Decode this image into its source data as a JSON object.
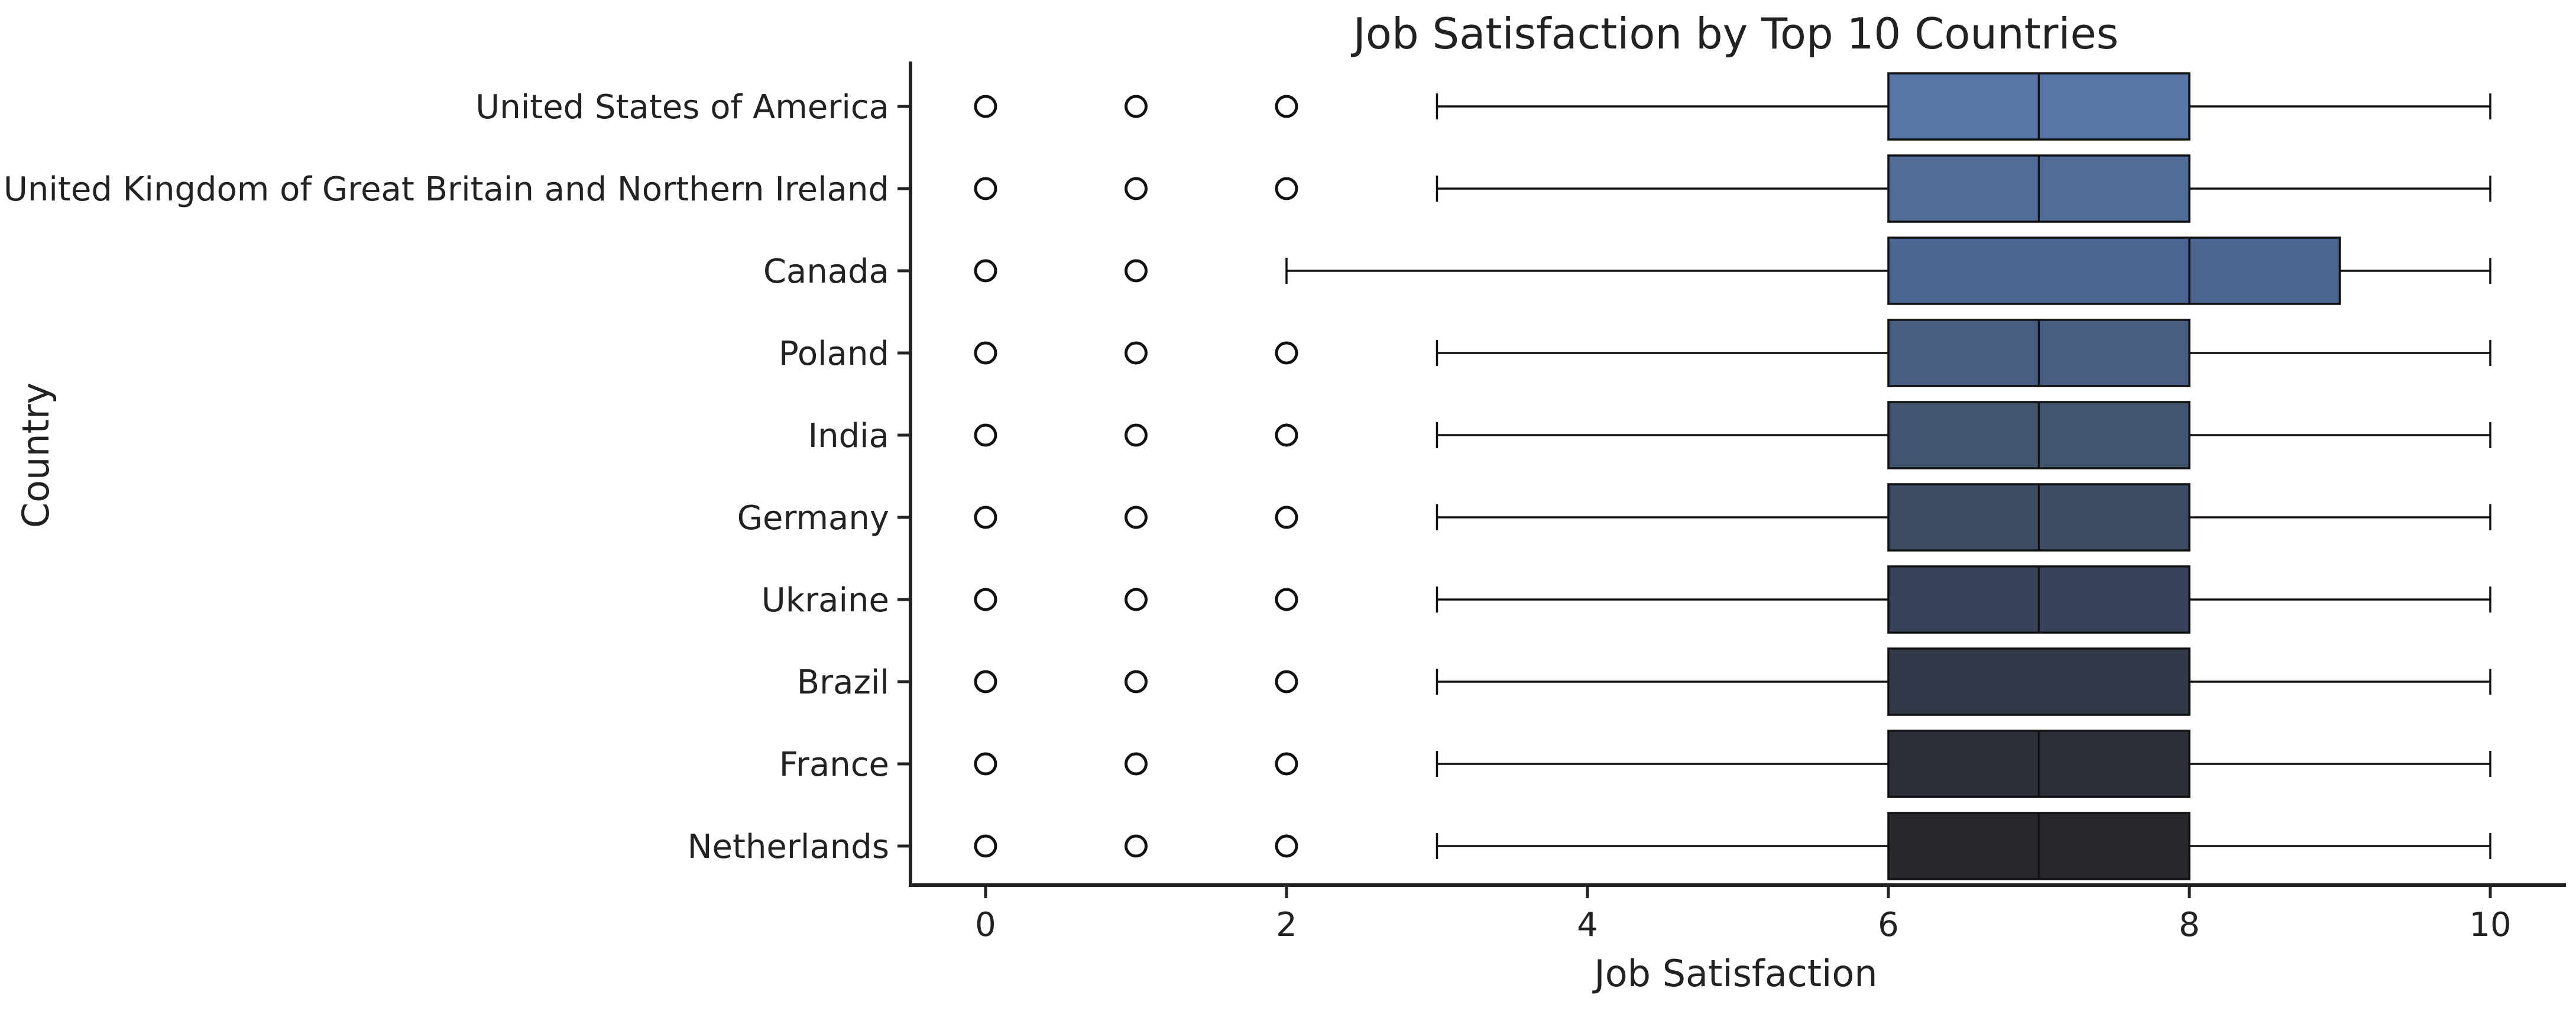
{
  "chart_data": {
    "type": "box",
    "orientation": "horizontal",
    "title": "Job Satisfaction by Top 10 Countries",
    "xlabel": "Job Satisfaction",
    "ylabel": "Country",
    "xlim": [
      -0.5,
      10.5
    ],
    "xticks": [
      0,
      2,
      4,
      6,
      8,
      10
    ],
    "grid": false,
    "categories": [
      "United States of America",
      "United Kingdom of Great Britain and Northern Ireland",
      "Canada",
      "Poland",
      "India",
      "Germany",
      "Ukraine",
      "Brazil",
      "France",
      "Netherlands"
    ],
    "boxes": [
      {
        "category": "United States of America",
        "whisker_low": 3,
        "q1": 6,
        "median": 7,
        "q3": 8,
        "whisker_high": 10,
        "outliers": [
          0,
          1,
          2
        ],
        "color": "#5875a4"
      },
      {
        "category": "United Kingdom of Great Britain and Northern Ireland",
        "whisker_low": 3,
        "q1": 6,
        "median": 7,
        "q3": 8,
        "whisker_high": 10,
        "outliers": [
          0,
          1,
          2
        ],
        "color": "#526c98"
      },
      {
        "category": "Canada",
        "whisker_low": 2,
        "q1": 6,
        "median": 8,
        "q3": 9,
        "whisker_high": 10,
        "outliers": [
          0,
          1
        ],
        "color": "#4c6590"
      },
      {
        "category": "Poland",
        "whisker_low": 3,
        "q1": 6,
        "median": 7,
        "q3": 8,
        "whisker_high": 10,
        "outliers": [
          0,
          1,
          2
        ],
        "color": "#485d82"
      },
      {
        "category": "India",
        "whisker_low": 3,
        "q1": 6,
        "median": 7,
        "q3": 8,
        "whisker_high": 10,
        "outliers": [
          0,
          1,
          2
        ],
        "color": "#43546f"
      },
      {
        "category": "Germany",
        "whisker_low": 3,
        "q1": 6,
        "median": 7,
        "q3": 8,
        "whisker_high": 10,
        "outliers": [
          0,
          1,
          2
        ],
        "color": "#3e4b64"
      },
      {
        "category": "Ukraine",
        "whisker_low": 3,
        "q1": 6,
        "median": 7,
        "q3": 8,
        "whisker_high": 10,
        "outliers": [
          0,
          1,
          2
        ],
        "color": "#38425a"
      },
      {
        "category": "Brazil",
        "whisker_low": 3,
        "q1": 6,
        "median": 8,
        "q3": 8,
        "whisker_high": 10,
        "outliers": [
          0,
          1,
          2
        ],
        "color": "#323848"
      },
      {
        "category": "France",
        "whisker_low": 3,
        "q1": 6,
        "median": 7,
        "q3": 8,
        "whisker_high": 10,
        "outliers": [
          0,
          1,
          2
        ],
        "color": "#2c2f38"
      },
      {
        "category": "Netherlands",
        "whisker_low": 3,
        "q1": 6,
        "median": 7,
        "q3": 8,
        "whisker_high": 10,
        "outliers": [
          0,
          1,
          2
        ],
        "color": "#27282c"
      }
    ]
  }
}
